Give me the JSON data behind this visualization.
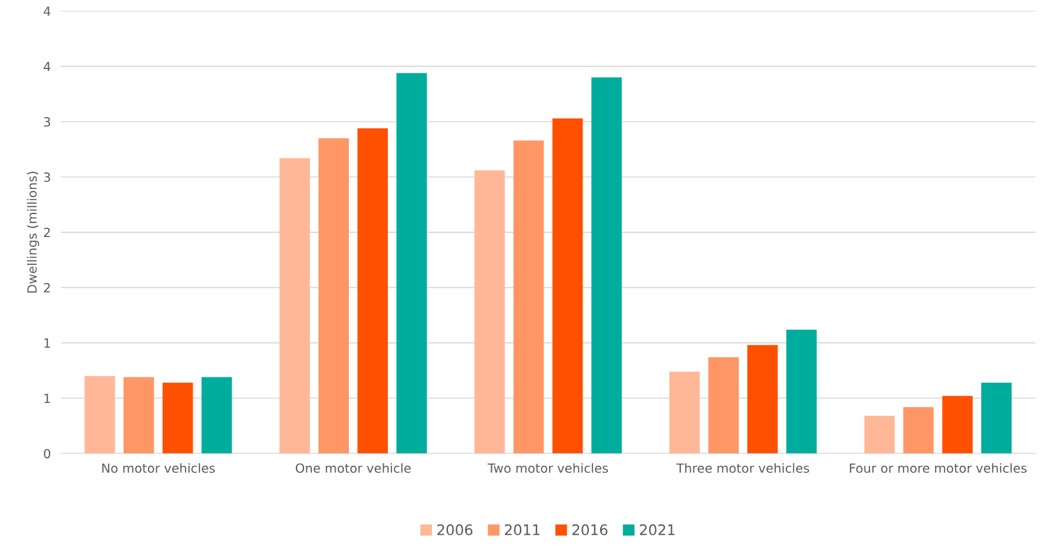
{
  "chart_data": {
    "type": "bar",
    "ylabel": "Dwellings (millions)",
    "categories": [
      "No motor vehicles",
      "One motor vehicle",
      "Two motor vehicles",
      "Three motor vehicles",
      "Four or more motor vehicles"
    ],
    "series": [
      {
        "name": "2006",
        "color": "#ffb897",
        "values": [
          0.7,
          2.67,
          2.56,
          0.74,
          0.34
        ]
      },
      {
        "name": "2011",
        "color": "#ff9666",
        "values": [
          0.69,
          2.85,
          2.83,
          0.87,
          0.42
        ]
      },
      {
        "name": "2016",
        "color": "#ff5000",
        "values": [
          0.64,
          2.94,
          3.03,
          0.98,
          0.52
        ]
      },
      {
        "name": "2021",
        "color": "#00ad9c",
        "values": [
          0.69,
          3.44,
          3.4,
          1.12,
          0.64
        ]
      }
    ],
    "ylim": [
      0,
      4
    ],
    "yticks": [
      0,
      {
        "value": 0.5,
        "label": "1"
      },
      1,
      {
        "value": 1.5,
        "label": "2"
      },
      2,
      {
        "value": 2.5,
        "label": "3"
      },
      3,
      {
        "value": 3.5,
        "label": "4"
      },
      4
    ],
    "grid": "y",
    "legend": "bottom"
  }
}
